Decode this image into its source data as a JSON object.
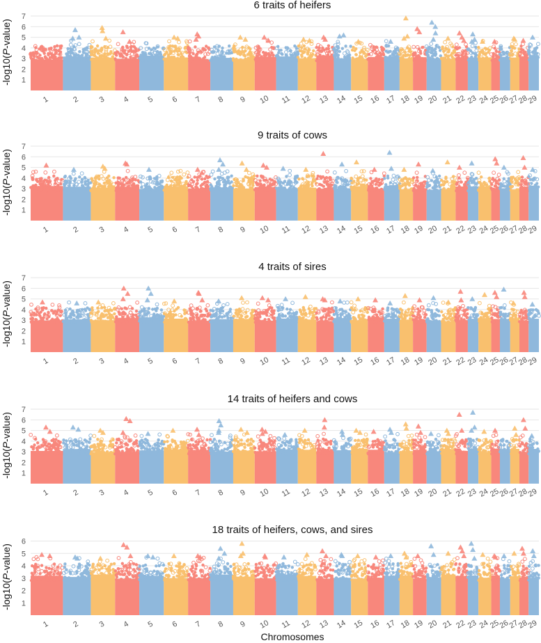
{
  "chart_data": {
    "type": "scatter",
    "subtype": "manhattan",
    "xlabel": "Chromosomes",
    "ylabel_prefix": "-log10(",
    "ylabel_italic": "P",
    "ylabel_suffix": "-value)",
    "chromosomes": [
      "1",
      "2",
      "3",
      "4",
      "5",
      "6",
      "7",
      "8",
      "9",
      "10",
      "11",
      "12",
      "13",
      "14",
      "15",
      "16",
      "17",
      "18",
      "19",
      "20",
      "21",
      "22",
      "23",
      "24",
      "25",
      "26",
      "27",
      "28",
      "29"
    ],
    "chromosome_relative_lengths": [
      1.16,
      1.0,
      0.87,
      0.87,
      0.88,
      0.87,
      0.8,
      0.82,
      0.77,
      0.77,
      0.78,
      0.66,
      0.63,
      0.62,
      0.6,
      0.59,
      0.55,
      0.48,
      0.49,
      0.52,
      0.52,
      0.44,
      0.38,
      0.46,
      0.31,
      0.37,
      0.33,
      0.33,
      0.37
    ],
    "colors": {
      "palette": [
        "#f8877c",
        "#8fb8dc",
        "#f9c06e"
      ],
      "grid": "#e6e6e6",
      "significant_mix": "#d6a96a"
    },
    "panels": [
      {
        "title": "6 traits of heifers",
        "ylim": [
          0,
          7.2
        ],
        "yticks": [
          1,
          2,
          3,
          4,
          5,
          6,
          7
        ],
        "significant": [
          {
            "chr": "2",
            "values": [
              5.7,
              5.0,
              4.9
            ]
          },
          {
            "chr": "3",
            "values": [
              5.9,
              5.6,
              4.9
            ]
          },
          {
            "chr": "4",
            "values": [
              5.5,
              4.6
            ]
          },
          {
            "chr": "6",
            "values": [
              5.0,
              4.9
            ]
          },
          {
            "chr": "7",
            "values": [
              5.3,
              5.1,
              4.8
            ]
          },
          {
            "chr": "9",
            "values": [
              5.0,
              4.8
            ]
          },
          {
            "chr": "10",
            "values": [
              5.0,
              4.7
            ]
          },
          {
            "chr": "12",
            "values": [
              4.8,
              4.7
            ]
          },
          {
            "chr": "13",
            "values": [
              5.0,
              4.8
            ]
          },
          {
            "chr": "14",
            "values": [
              5.1,
              5.2
            ]
          },
          {
            "chr": "15",
            "values": [
              4.6
            ]
          },
          {
            "chr": "17",
            "values": [
              4.6
            ]
          },
          {
            "chr": "18",
            "values": [
              6.8,
              5.1,
              4.9
            ]
          },
          {
            "chr": "19",
            "values": [
              5.8,
              5.5
            ]
          },
          {
            "chr": "20",
            "values": [
              6.4,
              6.0,
              5.4,
              4.8
            ]
          },
          {
            "chr": "21",
            "values": [
              4.9
            ]
          },
          {
            "chr": "22",
            "values": [
              5.4,
              5.0,
              4.7
            ]
          },
          {
            "chr": "23",
            "values": [
              5.3,
              4.8,
              4.6
            ]
          },
          {
            "chr": "24",
            "values": [
              4.6
            ]
          },
          {
            "chr": "25",
            "values": [
              4.6
            ]
          },
          {
            "chr": "27",
            "values": [
              4.9,
              4.8
            ]
          },
          {
            "chr": "28",
            "values": [
              4.7
            ]
          },
          {
            "chr": "29",
            "values": [
              5.0
            ]
          }
        ]
      },
      {
        "title": "9 traits of cows",
        "ylim": [
          0,
          7.2
        ],
        "yticks": [
          1,
          2,
          3,
          4,
          5,
          6,
          7
        ],
        "significant": [
          {
            "chr": "1",
            "values": [
              5.2
            ]
          },
          {
            "chr": "2",
            "values": [
              4.8
            ]
          },
          {
            "chr": "3",
            "values": [
              5.1,
              4.9
            ]
          },
          {
            "chr": "4",
            "values": [
              5.4,
              5.3
            ]
          },
          {
            "chr": "5",
            "values": [
              4.8
            ]
          },
          {
            "chr": "7",
            "values": [
              4.8,
              4.5
            ]
          },
          {
            "chr": "8",
            "values": [
              5.7,
              5.3,
              4.8
            ]
          },
          {
            "chr": "9",
            "values": [
              5.4,
              4.8
            ]
          },
          {
            "chr": "10",
            "values": [
              5.2,
              5.0
            ]
          },
          {
            "chr": "11",
            "values": [
              4.9
            ]
          },
          {
            "chr": "12",
            "values": [
              4.8
            ]
          },
          {
            "chr": "13",
            "values": [
              6.3
            ]
          },
          {
            "chr": "14",
            "values": [
              5.3
            ]
          },
          {
            "chr": "15",
            "values": [
              5.5
            ]
          },
          {
            "chr": "16",
            "values": [
              4.8
            ]
          },
          {
            "chr": "17",
            "values": [
              6.4,
              4.9
            ]
          },
          {
            "chr": "18",
            "values": [
              4.8
            ]
          },
          {
            "chr": "19",
            "values": [
              5.3
            ]
          },
          {
            "chr": "20",
            "values": [
              4.7
            ]
          },
          {
            "chr": "21",
            "values": [
              5.5
            ]
          },
          {
            "chr": "22",
            "values": [
              5.0
            ]
          },
          {
            "chr": "23",
            "values": [
              5.4
            ]
          },
          {
            "chr": "25",
            "values": [
              5.8,
              5.4
            ]
          },
          {
            "chr": "26",
            "values": [
              5.0
            ]
          },
          {
            "chr": "28",
            "values": [
              5.9,
              5.0
            ]
          },
          {
            "chr": "29",
            "values": [
              4.8
            ]
          }
        ]
      },
      {
        "title": "4 traits of sires",
        "ylim": [
          0,
          7.2
        ],
        "yticks": [
          1,
          2,
          3,
          4,
          5,
          6,
          7
        ],
        "significant": [
          {
            "chr": "1",
            "values": [
              4.7
            ]
          },
          {
            "chr": "2",
            "values": [
              4.6
            ]
          },
          {
            "chr": "3",
            "values": [
              4.7
            ]
          },
          {
            "chr": "4",
            "values": [
              6.0,
              5.5,
              5.0
            ]
          },
          {
            "chr": "5",
            "values": [
              6.0,
              5.5,
              4.9
            ]
          },
          {
            "chr": "6",
            "values": [
              4.8
            ]
          },
          {
            "chr": "7",
            "values": [
              5.6,
              5.5,
              4.9
            ]
          },
          {
            "chr": "8",
            "values": [
              4.8
            ]
          },
          {
            "chr": "9",
            "values": [
              5.1
            ]
          },
          {
            "chr": "10",
            "values": [
              5.1,
              4.9
            ]
          },
          {
            "chr": "11",
            "values": [
              5.0
            ]
          },
          {
            "chr": "12",
            "values": [
              5.2
            ]
          },
          {
            "chr": "13",
            "values": [
              5.0,
              4.9
            ]
          },
          {
            "chr": "14",
            "values": [
              4.8
            ]
          },
          {
            "chr": "15",
            "values": [
              5.0
            ]
          },
          {
            "chr": "16",
            "values": [
              4.9
            ]
          },
          {
            "chr": "17",
            "values": [
              4.6
            ]
          },
          {
            "chr": "18",
            "values": [
              5.3
            ]
          },
          {
            "chr": "19",
            "values": [
              4.9
            ]
          },
          {
            "chr": "20",
            "values": [
              5.1
            ]
          },
          {
            "chr": "21",
            "values": [
              4.7
            ]
          },
          {
            "chr": "22",
            "values": [
              5.7,
              4.9
            ]
          },
          {
            "chr": "23",
            "values": [
              5.0
            ]
          },
          {
            "chr": "24",
            "values": [
              5.4
            ]
          },
          {
            "chr": "25",
            "values": [
              5.6,
              5.2
            ]
          },
          {
            "chr": "26",
            "values": [
              5.9
            ]
          },
          {
            "chr": "27",
            "values": [
              4.6
            ]
          },
          {
            "chr": "28",
            "values": [
              5.6,
              5.2
            ]
          },
          {
            "chr": "29",
            "values": [
              4.5
            ]
          }
        ]
      },
      {
        "title": "14 traits of heifers and cows",
        "ylim": [
          0,
          7.2
        ],
        "yticks": [
          1,
          2,
          3,
          4,
          5,
          6,
          7
        ],
        "significant": [
          {
            "chr": "1",
            "values": [
              5.3,
              4.9
            ]
          },
          {
            "chr": "2",
            "values": [
              5.3,
              5.1
            ]
          },
          {
            "chr": "3",
            "values": [
              5.0,
              4.8
            ]
          },
          {
            "chr": "4",
            "values": [
              6.1,
              5.9,
              4.8
            ]
          },
          {
            "chr": "5",
            "values": [
              4.7
            ]
          },
          {
            "chr": "6",
            "values": [
              5.0
            ]
          },
          {
            "chr": "7",
            "values": [
              5.1,
              4.6
            ]
          },
          {
            "chr": "8",
            "values": [
              5.9,
              5.5,
              5.0,
              4.8
            ]
          },
          {
            "chr": "9",
            "values": [
              5.1,
              4.8
            ]
          },
          {
            "chr": "10",
            "values": [
              5.1,
              4.9,
              4.7
            ]
          },
          {
            "chr": "11",
            "values": [
              4.6
            ]
          },
          {
            "chr": "12",
            "values": [
              5.0
            ]
          },
          {
            "chr": "13",
            "values": [
              6.0,
              5.3
            ]
          },
          {
            "chr": "14",
            "values": [
              4.9,
              4.6
            ]
          },
          {
            "chr": "15",
            "values": [
              5.0,
              4.8
            ]
          },
          {
            "chr": "16",
            "values": [
              4.9
            ]
          },
          {
            "chr": "17",
            "values": [
              5.1,
              4.8
            ]
          },
          {
            "chr": "18",
            "values": [
              5.6,
              5.2
            ]
          },
          {
            "chr": "19",
            "values": [
              5.4,
              4.8
            ]
          },
          {
            "chr": "20",
            "values": [
              4.7
            ]
          },
          {
            "chr": "21",
            "values": [
              5.0,
              4.7
            ]
          },
          {
            "chr": "22",
            "values": [
              6.5,
              5.0
            ]
          },
          {
            "chr": "23",
            "values": [
              6.7,
              5.3,
              5.0
            ]
          },
          {
            "chr": "24",
            "values": [
              4.9
            ]
          },
          {
            "chr": "25",
            "values": [
              5.0
            ]
          },
          {
            "chr": "27",
            "values": [
              5.2,
              4.6
            ]
          },
          {
            "chr": "28",
            "values": [
              6.0,
              5.2
            ]
          },
          {
            "chr": "29",
            "values": [
              4.5
            ]
          }
        ]
      },
      {
        "title": "18 traits of heifers, cows, and sires",
        "ylim": [
          0,
          6.2
        ],
        "yticks": [
          1,
          2,
          3,
          4,
          5,
          6
        ],
        "significant": [
          {
            "chr": "1",
            "values": [
              4.9,
              4.8
            ]
          },
          {
            "chr": "2",
            "values": [
              4.7,
              4.6
            ]
          },
          {
            "chr": "3",
            "values": [
              4.6
            ]
          },
          {
            "chr": "4",
            "values": [
              5.7,
              5.5,
              4.8
            ]
          },
          {
            "chr": "5",
            "values": [
              4.8,
              4.7
            ]
          },
          {
            "chr": "6",
            "values": [
              4.8
            ]
          },
          {
            "chr": "7",
            "values": [
              4.8,
              4.7
            ]
          },
          {
            "chr": "8",
            "values": [
              5.4,
              5.0,
              4.6
            ]
          },
          {
            "chr": "9",
            "values": [
              5.8,
              5.0,
              4.8
            ]
          },
          {
            "chr": "10",
            "values": [
              4.8,
              4.7
            ]
          },
          {
            "chr": "11",
            "values": [
              4.7
            ]
          },
          {
            "chr": "12",
            "values": [
              4.9
            ]
          },
          {
            "chr": "13",
            "values": [
              5.2,
              4.8
            ]
          },
          {
            "chr": "14",
            "values": [
              4.9,
              4.8
            ]
          },
          {
            "chr": "15",
            "values": [
              4.8
            ]
          },
          {
            "chr": "16",
            "values": [
              4.7
            ]
          },
          {
            "chr": "17",
            "values": [
              4.8
            ]
          },
          {
            "chr": "18",
            "values": [
              5.0,
              4.7
            ]
          },
          {
            "chr": "19",
            "values": [
              4.8
            ]
          },
          {
            "chr": "20",
            "values": [
              5.6,
              4.9
            ]
          },
          {
            "chr": "21",
            "values": [
              5.0
            ]
          },
          {
            "chr": "22",
            "values": [
              5.5,
              5.2,
              4.8
            ]
          },
          {
            "chr": "23",
            "values": [
              5.8,
              5.3,
              4.6
            ]
          },
          {
            "chr": "24",
            "values": [
              4.9
            ]
          },
          {
            "chr": "25",
            "values": [
              4.8,
              4.7
            ]
          },
          {
            "chr": "26",
            "values": [
              4.8
            ]
          },
          {
            "chr": "27",
            "values": [
              5.0
            ]
          },
          {
            "chr": "28",
            "values": [
              5.4,
              5.0
            ]
          },
          {
            "chr": "29",
            "values": [
              5.2,
              4.8
            ]
          }
        ]
      }
    ]
  }
}
